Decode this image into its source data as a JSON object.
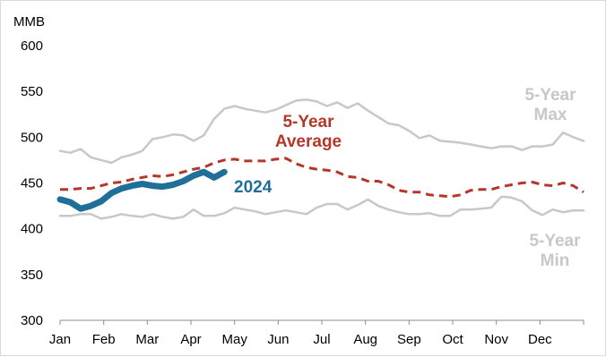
{
  "chart_data": {
    "type": "line",
    "ylabel": "MMB",
    "ylim": [
      300,
      600
    ],
    "yticks": [
      "600",
      "550",
      "500",
      "450",
      "400",
      "350",
      "300"
    ],
    "xticks": [
      "Jan",
      "Feb",
      "Mar",
      "Apr",
      "May",
      "Jun",
      "Jul",
      "Aug",
      "Sep",
      "Oct",
      "Nov",
      "Dec"
    ],
    "x_unit": "week of year",
    "series": [
      {
        "key": "max",
        "name": "5-Year Max",
        "color": "#c8c8c8",
        "style": "solid",
        "x": [
          1,
          2,
          3,
          4,
          5,
          6,
          7,
          8,
          9,
          10,
          11,
          12,
          13,
          14,
          15,
          16,
          17,
          18,
          19,
          20,
          21,
          22,
          23,
          24,
          25,
          26,
          27,
          28,
          29,
          30,
          31,
          32,
          33,
          34,
          35,
          36,
          37,
          38,
          39,
          40,
          41,
          42,
          43,
          44,
          45,
          46,
          47,
          48,
          49,
          50,
          51,
          52
        ],
        "values": [
          485,
          483,
          487,
          478,
          475,
          472,
          478,
          481,
          485,
          498,
          500,
          503,
          502,
          496,
          502,
          520,
          531,
          534,
          531,
          529,
          527,
          530,
          535,
          540,
          541,
          539,
          534,
          538,
          532,
          537,
          529,
          522,
          515,
          513,
          507,
          499,
          502,
          496,
          495,
          494,
          492,
          490,
          488,
          490,
          490,
          486,
          490,
          490,
          492,
          505,
          500,
          496
        ]
      },
      {
        "key": "avg",
        "name": "5-Year Average",
        "color": "#b5372a",
        "style": "dashed",
        "x": [
          1,
          2,
          3,
          4,
          5,
          6,
          7,
          8,
          9,
          10,
          11,
          12,
          13,
          14,
          15,
          16,
          17,
          18,
          19,
          20,
          21,
          22,
          23,
          24,
          25,
          26,
          27,
          28,
          29,
          30,
          31,
          32,
          33,
          34,
          35,
          36,
          37,
          38,
          39,
          40,
          41,
          42,
          43,
          44,
          45,
          46,
          47,
          48,
          49,
          50,
          51,
          52
        ],
        "values": [
          443,
          443,
          444,
          444,
          447,
          450,
          451,
          454,
          456,
          458,
          457,
          459,
          462,
          465,
          467,
          472,
          475,
          476,
          474,
          474,
          474,
          476,
          477,
          471,
          467,
          465,
          464,
          462,
          457,
          456,
          452,
          452,
          448,
          442,
          440,
          440,
          437,
          436,
          435,
          437,
          442,
          443,
          443,
          446,
          448,
          450,
          451,
          448,
          447,
          450,
          447,
          440
        ]
      },
      {
        "key": "min",
        "name": "5-Year Min",
        "color": "#c8c8c8",
        "style": "solid",
        "x": [
          1,
          2,
          3,
          4,
          5,
          6,
          7,
          8,
          9,
          10,
          11,
          12,
          13,
          14,
          15,
          16,
          17,
          18,
          19,
          20,
          21,
          22,
          23,
          24,
          25,
          26,
          27,
          28,
          29,
          30,
          31,
          32,
          33,
          34,
          35,
          36,
          37,
          38,
          39,
          40,
          41,
          42,
          43,
          44,
          45,
          46,
          47,
          48,
          49,
          50,
          51,
          52
        ],
        "values": [
          414,
          414,
          416,
          416,
          411,
          413,
          416,
          414,
          413,
          416,
          413,
          411,
          413,
          421,
          414,
          414,
          417,
          423,
          421,
          419,
          416,
          418,
          420,
          418,
          416,
          423,
          427,
          427,
          421,
          426,
          432,
          425,
          421,
          418,
          416,
          416,
          417,
          414,
          414,
          421,
          421,
          422,
          423,
          435,
          434,
          430,
          420,
          415,
          421,
          418,
          420,
          420
        ]
      },
      {
        "key": "y2024",
        "name": "2024",
        "color": "#1f6f99",
        "style": "thick",
        "x": [
          1,
          2,
          3,
          4,
          5,
          6,
          7,
          8,
          9,
          10,
          11,
          12,
          13,
          14,
          15,
          16,
          17
        ],
        "values": [
          432,
          429,
          422,
          425,
          430,
          439,
          444,
          447,
          449,
          447,
          446,
          448,
          452,
          458,
          462,
          456,
          462
        ]
      }
    ],
    "annotations": [
      {
        "series": "max",
        "lines": [
          "5-Year",
          "Max"
        ]
      },
      {
        "series": "avg",
        "lines": [
          "5-Year",
          "Average"
        ]
      },
      {
        "series": "min",
        "lines": [
          "5-Year",
          "Min"
        ]
      },
      {
        "series": "y2024",
        "lines": [
          "2024"
        ]
      }
    ]
  }
}
